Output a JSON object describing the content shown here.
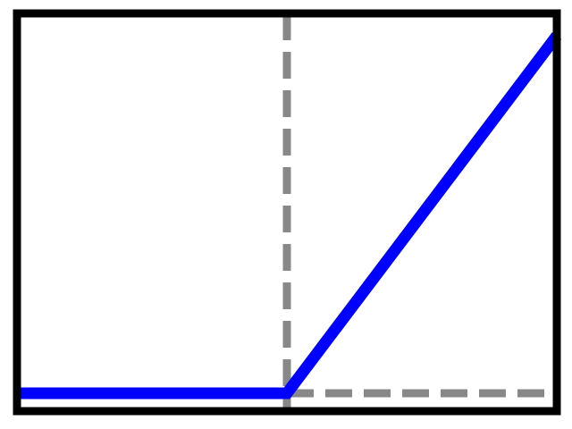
{
  "chart_data": {
    "type": "line",
    "title": "",
    "xlabel": "",
    "ylabel": "",
    "xlim": [
      -1,
      1
    ],
    "ylim": [
      0,
      1.32
    ],
    "grid": false,
    "legend": "none",
    "series": [
      {
        "color": "#0000ff",
        "style": "solid",
        "x": [
          -1,
          0,
          1
        ],
        "y": [
          0,
          0,
          1.32
        ]
      }
    ],
    "reference_lines": [
      {
        "kind": "vertical",
        "x": 0,
        "color": "#888888",
        "style": "dashed"
      },
      {
        "kind": "horizontal",
        "y": 0,
        "x_from": 0,
        "x_to": 1,
        "color": "#888888",
        "style": "dashed"
      }
    ],
    "frame_color": "#000000"
  }
}
